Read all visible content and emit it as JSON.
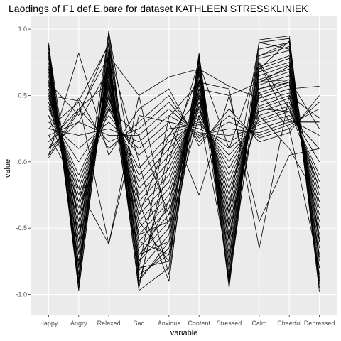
{
  "chart_data": {
    "type": "line",
    "title": "Laodings of F1 def.E.bare for dataset KATHLEEN STRESSKLINIEK",
    "xlabel": "variable",
    "ylabel": "value",
    "categories": [
      "Happy",
      "Angry",
      "Relaxed",
      "Sad",
      "Anxious",
      "Content",
      "Stressed",
      "Calm",
      "Cheerful",
      "Depressed"
    ],
    "ylim": [
      -1.05,
      1.0
    ],
    "yticks": [
      -1.0,
      -0.5,
      0.0,
      0.5,
      1.0
    ],
    "ytick_labels": [
      "-1.0",
      "-0.5",
      "0.0",
      "0.5",
      "1.0"
    ],
    "grid": true,
    "colors": {
      "panel": "#ebebeb",
      "grid_major": "#ffffff",
      "grid_minor": "#f5f5f5",
      "line": "#000000"
    },
    "series": [
      {
        "values": [
          0.9,
          -0.97,
          0.85,
          -0.97,
          -0.8,
          0.82,
          -0.95,
          0.9,
          0.93,
          -0.95
        ]
      },
      {
        "values": [
          0.88,
          -0.95,
          0.8,
          -0.9,
          -0.6,
          0.78,
          -0.9,
          0.85,
          0.9,
          -0.9
        ]
      },
      {
        "values": [
          0.85,
          -0.92,
          0.95,
          -0.85,
          -0.7,
          0.75,
          -0.85,
          0.8,
          0.87,
          -0.92
        ]
      },
      {
        "values": [
          0.8,
          -0.9,
          0.99,
          -0.8,
          -0.75,
          0.72,
          -0.8,
          0.78,
          0.84,
          -0.88
        ]
      },
      {
        "values": [
          0.82,
          -0.85,
          0.82,
          -0.88,
          -0.65,
          0.7,
          -0.75,
          0.72,
          0.8,
          -0.85
        ]
      },
      {
        "values": [
          0.78,
          -0.8,
          0.78,
          -0.82,
          -0.55,
          0.68,
          -0.7,
          0.7,
          0.78,
          -0.8
        ]
      },
      {
        "values": [
          0.75,
          -0.78,
          0.75,
          -0.75,
          -0.5,
          0.65,
          -0.65,
          0.68,
          0.75,
          -0.75
        ]
      },
      {
        "values": [
          0.72,
          -0.75,
          0.72,
          -0.7,
          -0.45,
          0.62,
          -0.6,
          0.65,
          0.73,
          -0.72
        ]
      },
      {
        "values": [
          0.7,
          -0.7,
          0.7,
          -0.65,
          -0.4,
          0.6,
          -0.55,
          0.62,
          0.7,
          -0.7
        ]
      },
      {
        "values": [
          0.68,
          -0.65,
          0.68,
          -0.6,
          -0.35,
          0.58,
          -0.5,
          0.6,
          0.68,
          -0.65
        ]
      },
      {
        "values": [
          0.65,
          -0.6,
          0.65,
          -0.55,
          -0.3,
          0.55,
          -0.45,
          0.58,
          0.65,
          -0.6
        ]
      },
      {
        "values": [
          0.62,
          -0.55,
          0.62,
          -0.5,
          -0.25,
          0.52,
          -0.4,
          0.55,
          0.62,
          -0.55
        ]
      },
      {
        "values": [
          0.6,
          -0.5,
          0.6,
          -0.45,
          -0.2,
          0.5,
          -0.35,
          0.52,
          0.6,
          -0.5
        ]
      },
      {
        "values": [
          0.58,
          -0.45,
          0.58,
          -0.4,
          -0.15,
          0.48,
          -0.3,
          0.5,
          0.58,
          -0.45
        ]
      },
      {
        "values": [
          0.55,
          -0.4,
          0.55,
          -0.35,
          -0.1,
          0.45,
          -0.25,
          0.48,
          0.55,
          -0.4
        ]
      },
      {
        "values": [
          0.52,
          -0.35,
          0.52,
          -0.3,
          -0.05,
          0.42,
          -0.2,
          0.45,
          0.52,
          -0.35
        ]
      },
      {
        "values": [
          0.5,
          -0.3,
          0.5,
          -0.25,
          0.0,
          0.4,
          -0.15,
          0.42,
          0.5,
          -0.3
        ]
      },
      {
        "values": [
          0.48,
          -0.25,
          0.48,
          -0.2,
          0.05,
          0.38,
          -0.1,
          0.4,
          0.48,
          -0.25
        ]
      },
      {
        "values": [
          0.45,
          -0.2,
          0.45,
          -0.15,
          0.1,
          0.35,
          -0.05,
          0.38,
          0.45,
          -0.2
        ]
      },
      {
        "values": [
          0.42,
          -0.15,
          0.42,
          -0.1,
          0.15,
          0.32,
          0.0,
          0.35,
          0.42,
          -0.15
        ]
      },
      {
        "values": [
          0.4,
          -0.1,
          0.4,
          -0.05,
          0.2,
          0.3,
          0.05,
          0.32,
          0.4,
          -0.1
        ]
      },
      {
        "values": [
          0.35,
          0.0,
          0.35,
          0.05,
          0.25,
          0.28,
          0.1,
          0.3,
          0.38,
          0.0
        ]
      },
      {
        "values": [
          0.3,
          0.1,
          0.3,
          0.1,
          0.3,
          0.25,
          0.15,
          0.28,
          0.35,
          0.1
        ]
      },
      {
        "values": [
          0.25,
          0.2,
          0.25,
          0.15,
          0.35,
          0.22,
          0.2,
          0.25,
          0.32,
          0.2
        ]
      },
      {
        "values": [
          0.2,
          0.3,
          0.2,
          0.2,
          0.4,
          0.2,
          0.25,
          0.22,
          0.3,
          0.3
        ]
      },
      {
        "values": [
          0.15,
          0.4,
          0.15,
          0.25,
          0.45,
          0.18,
          0.3,
          0.2,
          0.28,
          0.4
        ]
      },
      {
        "values": [
          0.1,
          0.48,
          0.1,
          0.3,
          0.5,
          0.15,
          0.35,
          0.18,
          0.25,
          0.45
        ]
      },
      {
        "values": [
          0.05,
          0.82,
          0.05,
          0.4,
          0.55,
          0.12,
          0.4,
          0.15,
          0.22,
          0.5
        ]
      },
      {
        "values": [
          0.03,
          0.38,
          0.8,
          0.5,
          0.64,
          0.7,
          0.57,
          0.48,
          0.55,
          0.57
        ]
      },
      {
        "values": [
          0.05,
          0.4,
          0.6,
          -0.8,
          0.34,
          0.6,
          0.55,
          -0.65,
          0.5,
          0.33
        ]
      },
      {
        "values": [
          0.1,
          0.3,
          0.7,
          -0.7,
          -0.6,
          0.55,
          0.5,
          0.6,
          0.62,
          0.25
        ]
      },
      {
        "values": [
          0.2,
          -0.2,
          -0.62,
          0.35,
          0.3,
          -0.25,
          0.5,
          -0.45,
          0.05,
          0.1
        ]
      },
      {
        "values": [
          0.25,
          0.45,
          -0.62,
          0.5,
          -0.5,
          0.35,
          -0.8,
          0.55,
          0.6,
          -0.5
        ]
      },
      {
        "values": [
          0.88,
          -0.6,
          0.98,
          -0.3,
          -0.9,
          0.8,
          -0.75,
          0.92,
          0.95,
          -0.9
        ]
      },
      {
        "values": [
          0.87,
          -0.85,
          0.9,
          -0.92,
          0.0,
          0.76,
          -0.92,
          0.7,
          0.91,
          -0.98
        ]
      },
      {
        "values": [
          0.86,
          -0.7,
          0.84,
          0.0,
          -0.85,
          0.74,
          0.1,
          0.75,
          0.4,
          -0.2
        ]
      },
      {
        "values": [
          0.83,
          -0.88,
          0.76,
          -0.95,
          0.1,
          0.66,
          -0.6,
          0.74,
          0.3,
          0.3
        ]
      },
      {
        "values": [
          0.6,
          0.35,
          0.9,
          -0.6,
          -0.7,
          0.5,
          -0.35,
          0.9,
          0.85,
          -0.6
        ]
      },
      {
        "values": [
          0.5,
          0.46,
          0.88,
          -0.75,
          -0.3,
          0.45,
          -0.25,
          0.52,
          0.25,
          -0.8
        ]
      },
      {
        "values": [
          0.7,
          -0.45,
          0.65,
          -0.45,
          -0.75,
          0.62,
          -0.88,
          0.8,
          0.9,
          -0.88
        ]
      },
      {
        "values": [
          0.55,
          -0.5,
          0.56,
          -0.55,
          -0.45,
          0.55,
          -0.58,
          0.6,
          0.72,
          -0.58
        ]
      },
      {
        "values": [
          0.45,
          -0.4,
          0.5,
          -0.4,
          0.2,
          0.48,
          -0.48,
          0.4,
          0.38,
          0.0
        ]
      },
      {
        "values": [
          0.35,
          -0.3,
          0.4,
          0.2,
          -0.4,
          0.42,
          -0.38,
          0.35,
          0.1,
          -0.3
        ]
      }
    ]
  }
}
